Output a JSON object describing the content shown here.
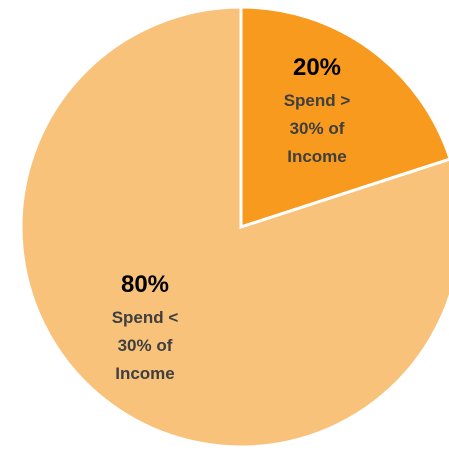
{
  "chart_data": {
    "type": "pie",
    "title": "",
    "start_angle_deg": 0,
    "direction": "clockwise",
    "slices": [
      {
        "value": 20,
        "percent_label": "20%",
        "label_lines": [
          "Spend >",
          "30% of",
          "Income"
        ],
        "color": "#F79A1E"
      },
      {
        "value": 80,
        "percent_label": "80%",
        "label_lines": [
          "Spend <",
          "30% of",
          "Income"
        ],
        "color": "#F9C27B"
      }
    ],
    "slice_border_color": "#FFFFFF",
    "legend": "none"
  }
}
